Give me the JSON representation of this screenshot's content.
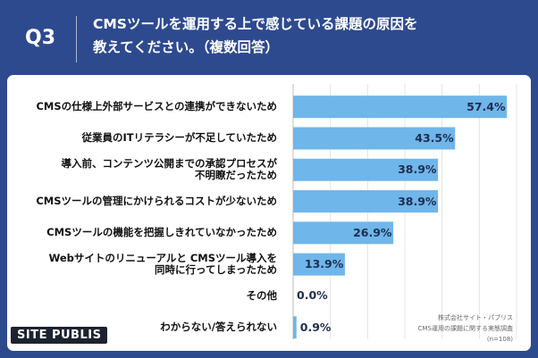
{
  "header": {
    "question_number": "Q3",
    "title_line1": "CMSツールを運用する上で感じている課題の原因を",
    "title_line2": "教えてください。（複数回答）"
  },
  "chart_data": {
    "type": "bar",
    "orientation": "horizontal",
    "categories": [
      "CMSの仕様上外部サービスとの連携ができないため",
      "従業員のITリテラシーが不足していたため",
      "導入前、コンテンツ公開までの承認プロセスが\n不明瞭だったため",
      "CMSツールの管理にかけられるコストが少ないため",
      "CMSツールの機能を把握しきれていなかったため",
      "Webサイトのリニューアルと CMSツール導入を\n同時に行ってしまったため",
      "その他",
      "わからない/答えられない"
    ],
    "values": [
      57.4,
      43.5,
      38.9,
      38.9,
      26.9,
      13.9,
      0.0,
      0.9
    ],
    "value_labels": [
      "57.4%",
      "43.5%",
      "38.9%",
      "38.9%",
      "26.9%",
      "13.9%",
      "0.0%",
      "0.9%"
    ],
    "xlim": [
      0,
      60
    ],
    "bar_color": "#6fb6ea",
    "grid": true
  },
  "footer": {
    "logo": "SITE PUBLIS",
    "source_line1": "株式会社サイト・パブリス",
    "source_line2": "CMS運用の課題に関する実態調査",
    "source_line3": "(n=108)"
  }
}
